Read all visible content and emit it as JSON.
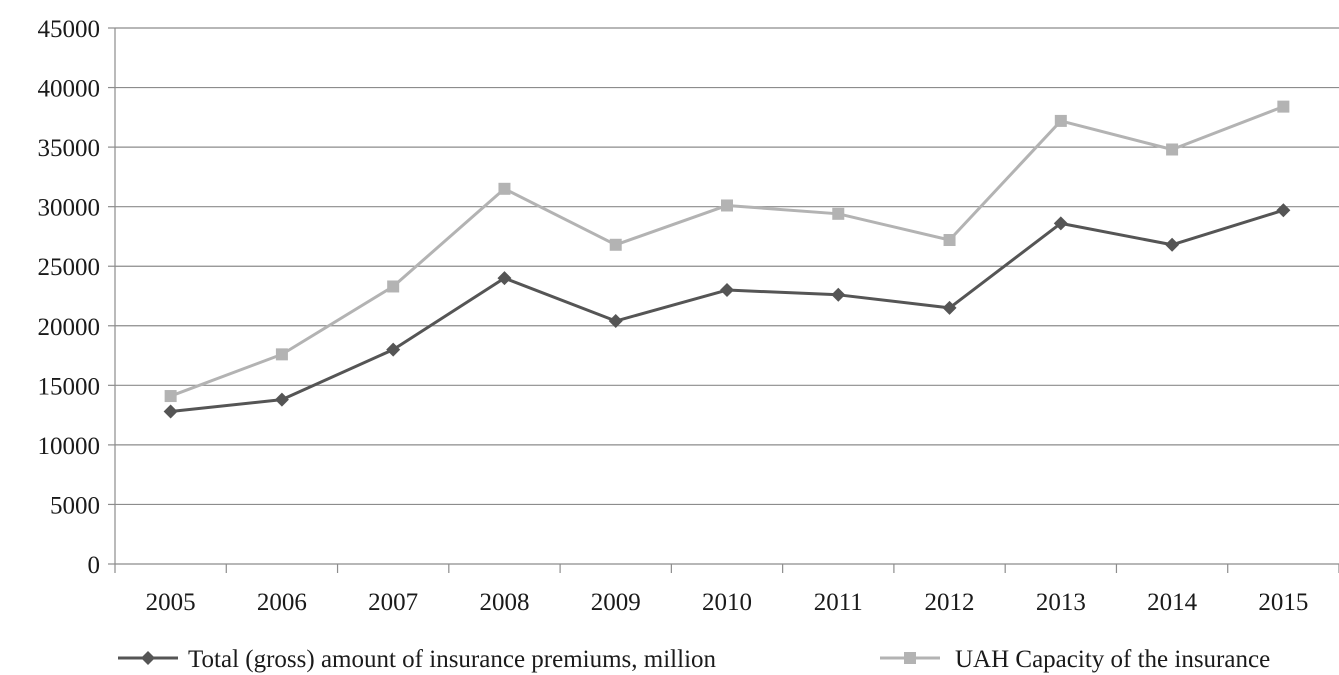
{
  "chart_data": {
    "type": "line",
    "x": [
      "2005",
      "2006",
      "2007",
      "2008",
      "2009",
      "2010",
      "2011",
      "2012",
      "2013",
      "2014",
      "2015"
    ],
    "ylim": [
      0,
      45000
    ],
    "yticks": [
      "0",
      "5000",
      "10000",
      "15000",
      "20000",
      "25000",
      "30000",
      "35000",
      "40000",
      "45000"
    ],
    "grid": "horizontal",
    "legend_position": "bottom",
    "series": [
      {
        "name": "Total (gross) amount of insurance premiums, million",
        "color": "#555555",
        "marker": "diamond",
        "values": [
          12800,
          13800,
          18000,
          24000,
          20400,
          23000,
          22600,
          21500,
          28600,
          26800,
          29700
        ]
      },
      {
        "name": "UAH Capacity of the insurance",
        "color": "#b3b3b3",
        "marker": "square",
        "values": [
          14100,
          17600,
          23300,
          31500,
          26800,
          30100,
          29400,
          27200,
          37200,
          34800,
          38400
        ]
      }
    ]
  }
}
